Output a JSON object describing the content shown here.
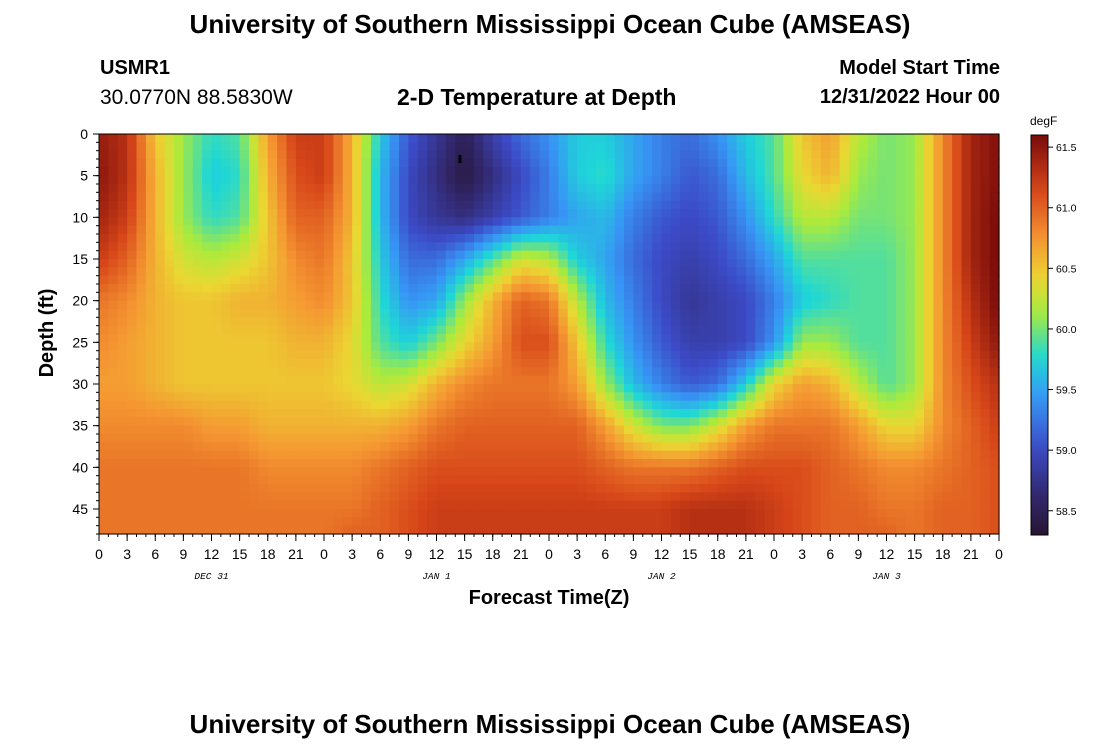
{
  "header": {
    "title": "University of Southern Mississippi Ocean Cube (AMSEAS)",
    "station": "USMR1",
    "location": "30.0770N  88.5830W",
    "subtitle": "2-D Temperature at Depth",
    "model_start_label": "Model Start Time",
    "model_start_value": "12/31/2022 Hour 00"
  },
  "footer": {
    "title": "University of Southern Mississippi Ocean Cube (AMSEAS)"
  },
  "chart_data": {
    "type": "heatmap",
    "title": "2-D Temperature at Depth",
    "xlabel": "Forecast Time(Z)",
    "ylabel": "Depth (ft)",
    "x_tick_labels": [
      "0",
      "3",
      "6",
      "9",
      "12",
      "15",
      "18",
      "21",
      "0",
      "3",
      "6",
      "9",
      "12",
      "15",
      "18",
      "21",
      "0",
      "3",
      "6",
      "9",
      "12",
      "15",
      "18",
      "21",
      "0",
      "3",
      "6",
      "9",
      "12",
      "15",
      "18",
      "21",
      "0"
    ],
    "x_range_hours": [
      0,
      96
    ],
    "day_labels": [
      {
        "label": "DEC 31",
        "hour": 12
      },
      {
        "label": "JAN 1",
        "hour": 36
      },
      {
        "label": "JAN 2",
        "hour": 60
      },
      {
        "label": "JAN 3",
        "hour": 84
      }
    ],
    "y_range_ft": [
      0,
      48
    ],
    "y_ticks": [
      0,
      5,
      10,
      15,
      20,
      25,
      30,
      35,
      40,
      45
    ],
    "colorbar": {
      "label": "degF",
      "range": [
        58.3,
        61.6
      ],
      "ticks": [
        58.5,
        59.0,
        59.5,
        60.0,
        60.5,
        61.0,
        61.5
      ],
      "tick_labels": [
        "58.5",
        "59.0",
        "59.5",
        "60.0",
        "60.5",
        "61.0",
        "61.5"
      ]
    },
    "grid_depths_ft": [
      0,
      5,
      10,
      15,
      20,
      25,
      30,
      35,
      40,
      45,
      48
    ],
    "grid_hours": [
      0,
      3,
      6,
      9,
      12,
      15,
      18,
      21,
      24,
      27,
      30,
      33,
      36,
      39,
      42,
      45,
      48,
      51,
      54,
      57,
      60,
      63,
      66,
      69,
      72,
      75,
      78,
      81,
      84,
      87,
      90,
      93,
      96
    ],
    "temperature_degF": [
      [
        61.45,
        61.3,
        60.5,
        60.1,
        59.8,
        59.9,
        60.7,
        61.2,
        61.2,
        60.6,
        59.7,
        59.1,
        58.8,
        58.5,
        58.9,
        59.2,
        59.4,
        59.7,
        59.7,
        59.5,
        59.3,
        59.2,
        59.4,
        59.7,
        59.9,
        60.5,
        60.7,
        60.2,
        60.0,
        60.1,
        60.8,
        61.4,
        61.55
      ],
      [
        61.5,
        61.3,
        60.6,
        60.1,
        59.7,
        59.8,
        60.6,
        61.1,
        61.2,
        60.6,
        59.6,
        59.0,
        58.7,
        58.4,
        58.7,
        59.0,
        59.3,
        59.7,
        59.8,
        59.5,
        59.3,
        59.1,
        59.2,
        59.6,
        59.9,
        60.4,
        60.6,
        60.1,
        60.0,
        60.1,
        60.8,
        61.4,
        61.55
      ],
      [
        61.4,
        61.2,
        60.6,
        60.1,
        59.8,
        59.9,
        60.5,
        61.0,
        61.0,
        60.6,
        59.6,
        59.0,
        58.8,
        58.7,
        58.9,
        59.1,
        59.3,
        59.5,
        59.6,
        59.3,
        59.1,
        59.0,
        59.1,
        59.4,
        59.8,
        60.2,
        60.2,
        60.0,
        60.0,
        60.1,
        60.8,
        61.4,
        61.6
      ],
      [
        61.2,
        61.0,
        60.6,
        60.3,
        60.2,
        60.3,
        60.5,
        60.8,
        60.9,
        60.5,
        59.7,
        59.2,
        59.2,
        59.5,
        59.9,
        60.3,
        60.2,
        59.7,
        59.5,
        59.2,
        59.0,
        58.9,
        59.0,
        59.2,
        59.5,
        59.9,
        59.9,
        59.9,
        59.9,
        60.1,
        60.8,
        61.4,
        61.6
      ],
      [
        60.9,
        60.8,
        60.6,
        60.5,
        60.5,
        60.6,
        60.6,
        60.7,
        60.8,
        60.5,
        59.8,
        59.4,
        59.5,
        60.1,
        60.6,
        61.0,
        60.9,
        60.2,
        59.6,
        59.3,
        59.0,
        58.8,
        58.9,
        59.0,
        59.3,
        59.7,
        59.8,
        59.9,
        59.9,
        60.1,
        60.8,
        61.3,
        61.6
      ],
      [
        60.8,
        60.7,
        60.6,
        60.5,
        60.5,
        60.5,
        60.5,
        60.6,
        60.6,
        60.4,
        59.9,
        59.7,
        60.0,
        60.4,
        60.7,
        61.1,
        61.1,
        60.5,
        59.8,
        59.4,
        59.1,
        58.9,
        58.9,
        59.0,
        59.4,
        60.1,
        60.1,
        59.9,
        59.9,
        60.1,
        60.8,
        61.2,
        61.5
      ],
      [
        60.7,
        60.7,
        60.6,
        60.5,
        60.5,
        60.5,
        60.5,
        60.5,
        60.5,
        60.4,
        60.2,
        60.3,
        60.6,
        60.8,
        60.9,
        60.9,
        60.9,
        60.7,
        60.1,
        59.6,
        59.3,
        59.1,
        59.2,
        59.7,
        60.4,
        60.7,
        60.6,
        60.2,
        59.9,
        60.1,
        60.8,
        61.1,
        61.3
      ],
      [
        60.8,
        60.8,
        60.8,
        60.8,
        60.7,
        60.7,
        60.6,
        60.6,
        60.6,
        60.6,
        60.6,
        60.7,
        60.9,
        61.0,
        61.0,
        61.0,
        61.0,
        61.0,
        60.7,
        60.3,
        60.0,
        60.0,
        60.3,
        60.7,
        60.9,
        60.9,
        60.9,
        60.7,
        60.4,
        60.4,
        60.8,
        61.0,
        61.2
      ],
      [
        60.9,
        60.9,
        60.9,
        60.9,
        60.9,
        60.9,
        60.8,
        60.8,
        60.8,
        60.8,
        60.9,
        61.0,
        61.1,
        61.1,
        61.1,
        61.1,
        61.1,
        61.1,
        61.0,
        60.9,
        60.9,
        60.9,
        61.0,
        61.1,
        61.1,
        61.1,
        61.0,
        60.9,
        60.8,
        60.8,
        60.9,
        61.0,
        61.1
      ],
      [
        60.9,
        60.9,
        60.9,
        60.9,
        60.9,
        60.9,
        60.9,
        60.9,
        60.9,
        60.9,
        61.0,
        61.1,
        61.2,
        61.2,
        61.2,
        61.2,
        61.2,
        61.2,
        61.2,
        61.2,
        61.2,
        61.3,
        61.3,
        61.3,
        61.2,
        61.1,
        61.0,
        61.0,
        60.9,
        60.9,
        61.0,
        61.0,
        61.1
      ],
      [
        60.9,
        60.9,
        60.9,
        60.9,
        60.9,
        60.9,
        60.9,
        60.9,
        60.9,
        61.0,
        61.0,
        61.1,
        61.2,
        61.2,
        61.2,
        61.2,
        61.2,
        61.2,
        61.2,
        61.2,
        61.2,
        61.3,
        61.3,
        61.3,
        61.2,
        61.1,
        61.0,
        61.0,
        61.0,
        60.9,
        61.0,
        61.0,
        61.1
      ]
    ],
    "annotations": [
      {
        "type": "marker",
        "hour": 38.5,
        "depth_ft": 3
      }
    ]
  }
}
